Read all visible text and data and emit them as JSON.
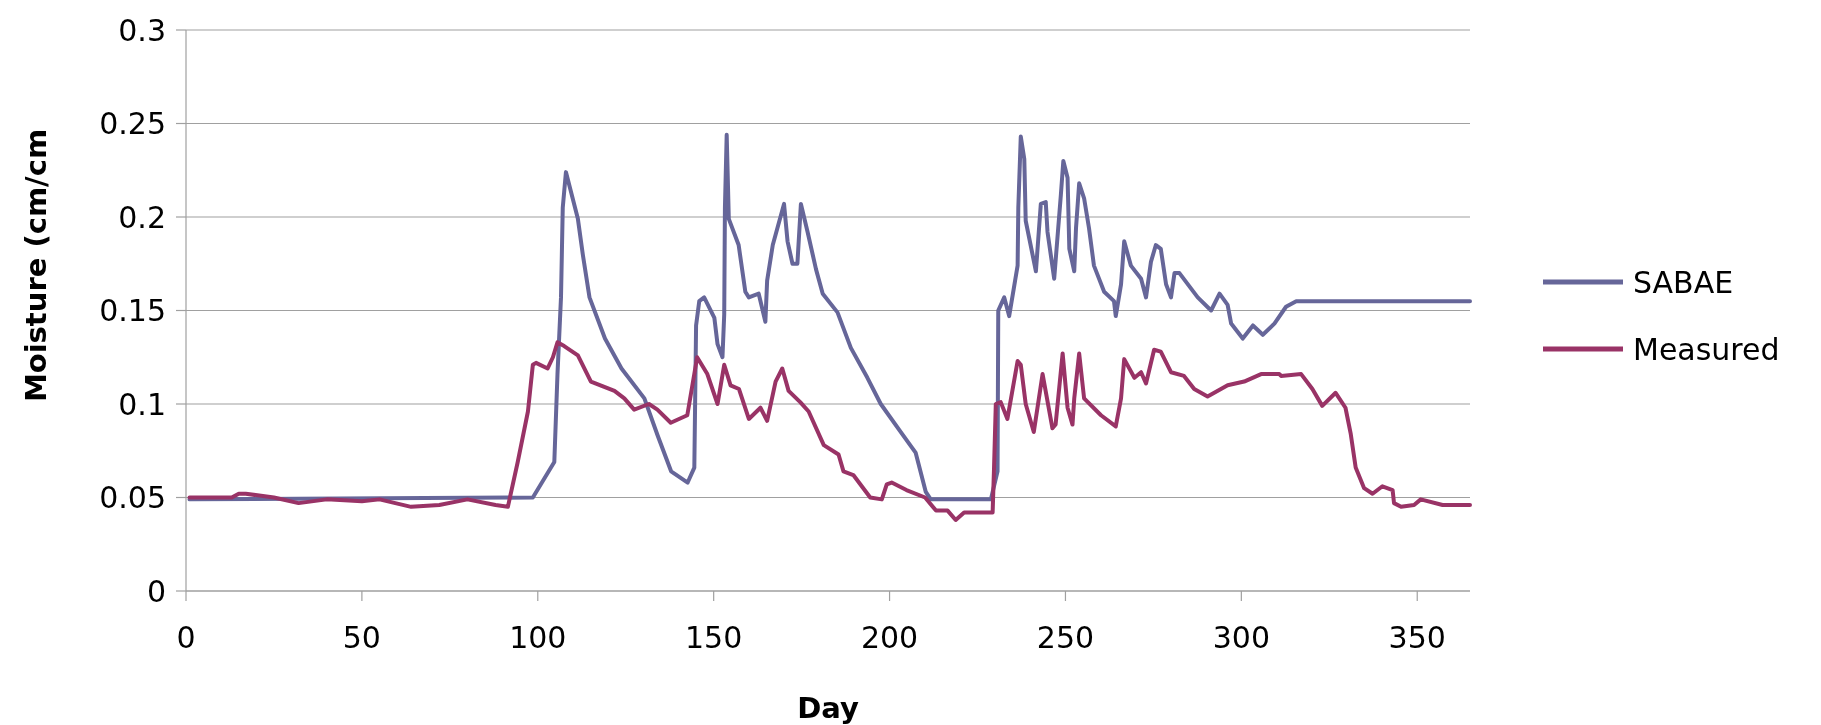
{
  "chart_data": {
    "type": "line",
    "xlabel": "Day",
    "ylabel": "Moisture (cm/cm",
    "xlim": [
      0,
      365
    ],
    "xticks": [
      0,
      50,
      100,
      150,
      200,
      250,
      300,
      350
    ],
    "ylim": [
      0,
      0.3
    ],
    "yticks": [
      0,
      0.05,
      0.1,
      0.15,
      0.2,
      0.25,
      0.3
    ],
    "grid": "y",
    "legend": "right",
    "line_style": "solid",
    "series": [
      {
        "name": "SABAE",
        "color": "#666699",
        "x": [
          1,
          98.6,
          104.7,
          105.6,
          106.6,
          107.1,
          108,
          111.4,
          112.8,
          114.7,
          119.1,
          123.8,
          130.3,
          134.1,
          137.9,
          142.6,
          144.5,
          145,
          145.9,
          147.3,
          150.2,
          151.1,
          152.5,
          153,
          153.2,
          153.7,
          154.3,
          157.1,
          159,
          160,
          162.8,
          164.7,
          165.2,
          166.8,
          170,
          171,
          172.4,
          173.8,
          174.8,
          176.7,
          179.1,
          181,
          185.2,
          189,
          193.7,
          197.5,
          203.2,
          207.4,
          210.3,
          211.7,
          228.8,
          230.7,
          230.9,
          232.6,
          234,
          236.4,
          236.6,
          237.3,
          238.3,
          238.7,
          241.6,
          243,
          244.4,
          244.9,
          246.8,
          248.7,
          249.4,
          250.6,
          251.1,
          252.5,
          253,
          253.9,
          255.3,
          256.7,
          258.1,
          261,
          263.8,
          264.3,
          265.8,
          266.7,
          268.6,
          271.5,
          272.9,
          274.3,
          275.7,
          277.1,
          278.6,
          280,
          281,
          282.4,
          287.6,
          291.4,
          293.8,
          296.1,
          297.1,
          300.4,
          303.3,
          306.1,
          309.4,
          312.7,
          315.6,
          365
        ],
        "values": [
          0.049,
          0.05,
          0.069,
          0.116,
          0.157,
          0.205,
          0.224,
          0.199,
          0.18,
          0.157,
          0.135,
          0.119,
          0.103,
          0.083,
          0.064,
          0.058,
          0.066,
          0.142,
          0.155,
          0.157,
          0.146,
          0.132,
          0.125,
          0.148,
          0.205,
          0.244,
          0.199,
          0.185,
          0.16,
          0.157,
          0.159,
          0.144,
          0.166,
          0.185,
          0.207,
          0.187,
          0.175,
          0.175,
          0.207,
          0.192,
          0.172,
          0.159,
          0.149,
          0.13,
          0.114,
          0.1,
          0.085,
          0.074,
          0.053,
          0.049,
          0.049,
          0.064,
          0.15,
          0.157,
          0.147,
          0.174,
          0.205,
          0.243,
          0.231,
          0.198,
          0.171,
          0.207,
          0.208,
          0.192,
          0.167,
          0.212,
          0.23,
          0.221,
          0.183,
          0.171,
          0.194,
          0.218,
          0.21,
          0.194,
          0.174,
          0.16,
          0.155,
          0.147,
          0.164,
          0.187,
          0.174,
          0.167,
          0.157,
          0.176,
          0.185,
          0.183,
          0.164,
          0.157,
          0.17,
          0.17,
          0.157,
          0.15,
          0.159,
          0.153,
          0.143,
          0.135,
          0.142,
          0.137,
          0.143,
          0.152,
          0.155,
          0.155
        ]
      },
      {
        "name": "Measured",
        "color": "#993366",
        "x": [
          1,
          13,
          15,
          17,
          25,
          32,
          40,
          50,
          55,
          64,
          72,
          80,
          88,
          91.5,
          94.3,
          97.2,
          98.6,
          99.5,
          102.8,
          104.3,
          105.6,
          107.5,
          111.4,
          115.1,
          121.8,
          124.6,
          127.4,
          131.6,
          134,
          137.8,
          142.5,
          145.3,
          148.2,
          151.1,
          153,
          154.8,
          157.2,
          160,
          163.3,
          165.2,
          167.6,
          169.5,
          171.3,
          174.6,
          177,
          181.3,
          185.5,
          186.9,
          189.7,
          194.5,
          197.8,
          199.2,
          200.6,
          204.8,
          210.1,
          213.2,
          216.5,
          218.8,
          221.2,
          229.3,
          229.7,
          230.2,
          231.6,
          233.5,
          236.4,
          237.3,
          238.7,
          241,
          243.5,
          246.3,
          247.2,
          249.2,
          250.6,
          252,
          252.5,
          253.9,
          255.3,
          260.1,
          264.3,
          265.8,
          266.7,
          269.6,
          271.5,
          272.9,
          275.2,
          277.1,
          280,
          283.7,
          286.6,
          290.4,
          296.1,
          300.8,
          305.6,
          310.8,
          311.3,
          317,
          320.2,
          323,
          326.8,
          329.6,
          331.1,
          332.5,
          334.9,
          337.3,
          340.1,
          343,
          343.4,
          345.4,
          349.1,
          351,
          357.2,
          365
        ],
        "values": [
          0.05,
          0.05,
          0.052,
          0.052,
          0.05,
          0.047,
          0.049,
          0.048,
          0.049,
          0.045,
          0.046,
          0.049,
          0.046,
          0.045,
          0.069,
          0.096,
          0.121,
          0.122,
          0.119,
          0.125,
          0.133,
          0.131,
          0.126,
          0.112,
          0.107,
          0.103,
          0.097,
          0.1,
          0.097,
          0.09,
          0.094,
          0.125,
          0.116,
          0.1,
          0.121,
          0.11,
          0.108,
          0.092,
          0.098,
          0.091,
          0.112,
          0.119,
          0.107,
          0.101,
          0.096,
          0.078,
          0.073,
          0.064,
          0.062,
          0.05,
          0.049,
          0.057,
          0.058,
          0.054,
          0.05,
          0.043,
          0.043,
          0.038,
          0.042,
          0.042,
          0.066,
          0.1,
          0.101,
          0.092,
          0.123,
          0.121,
          0.1,
          0.085,
          0.116,
          0.087,
          0.089,
          0.127,
          0.098,
          0.089,
          0.103,
          0.127,
          0.103,
          0.094,
          0.088,
          0.103,
          0.124,
          0.114,
          0.117,
          0.111,
          0.129,
          0.128,
          0.117,
          0.115,
          0.108,
          0.104,
          0.11,
          0.112,
          0.116,
          0.116,
          0.115,
          0.116,
          0.108,
          0.099,
          0.106,
          0.098,
          0.084,
          0.066,
          0.055,
          0.052,
          0.056,
          0.054,
          0.047,
          0.045,
          0.046,
          0.049,
          0.046,
          0.046
        ]
      }
    ]
  }
}
